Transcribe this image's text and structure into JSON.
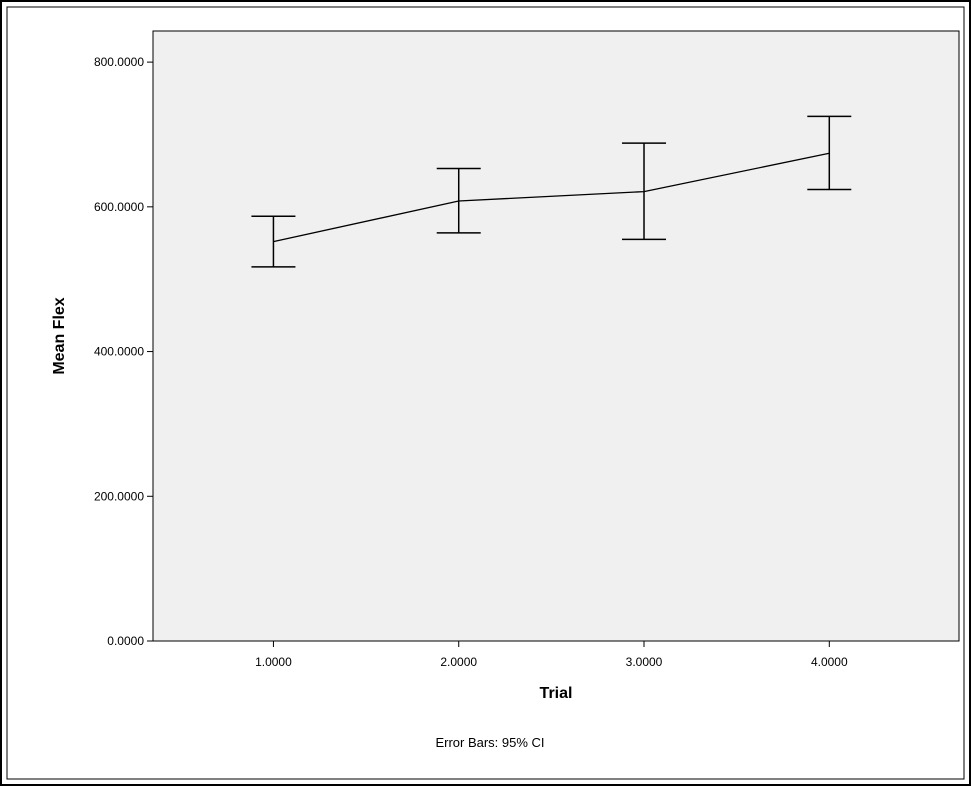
{
  "chart_data": {
    "type": "line",
    "x": [
      1.0,
      2.0,
      3.0,
      4.0
    ],
    "x_tick_labels": [
      "1.0000",
      "2.0000",
      "3.0000",
      "4.0000"
    ],
    "series": [
      {
        "values": [
          552,
          608,
          621,
          674
        ],
        "ci_upper": [
          587,
          653,
          688,
          725
        ],
        "ci_lower": [
          517,
          564,
          555,
          624
        ]
      }
    ],
    "xlabel": "Trial",
    "ylabel": "Mean Flex",
    "y_ticks": [
      0,
      200,
      400,
      600,
      800
    ],
    "y_tick_labels": [
      "0.0000",
      "200.0000",
      "400.0000",
      "600.0000",
      "800.0000"
    ],
    "ylim": [
      0,
      843
    ],
    "xlim": [
      0.35,
      4.7
    ],
    "grid": false,
    "footnote": "Error Bars: 95% CI",
    "colors": {
      "plot_background": "#f0f0f0",
      "line": "#000000",
      "frame": "#000000"
    }
  }
}
